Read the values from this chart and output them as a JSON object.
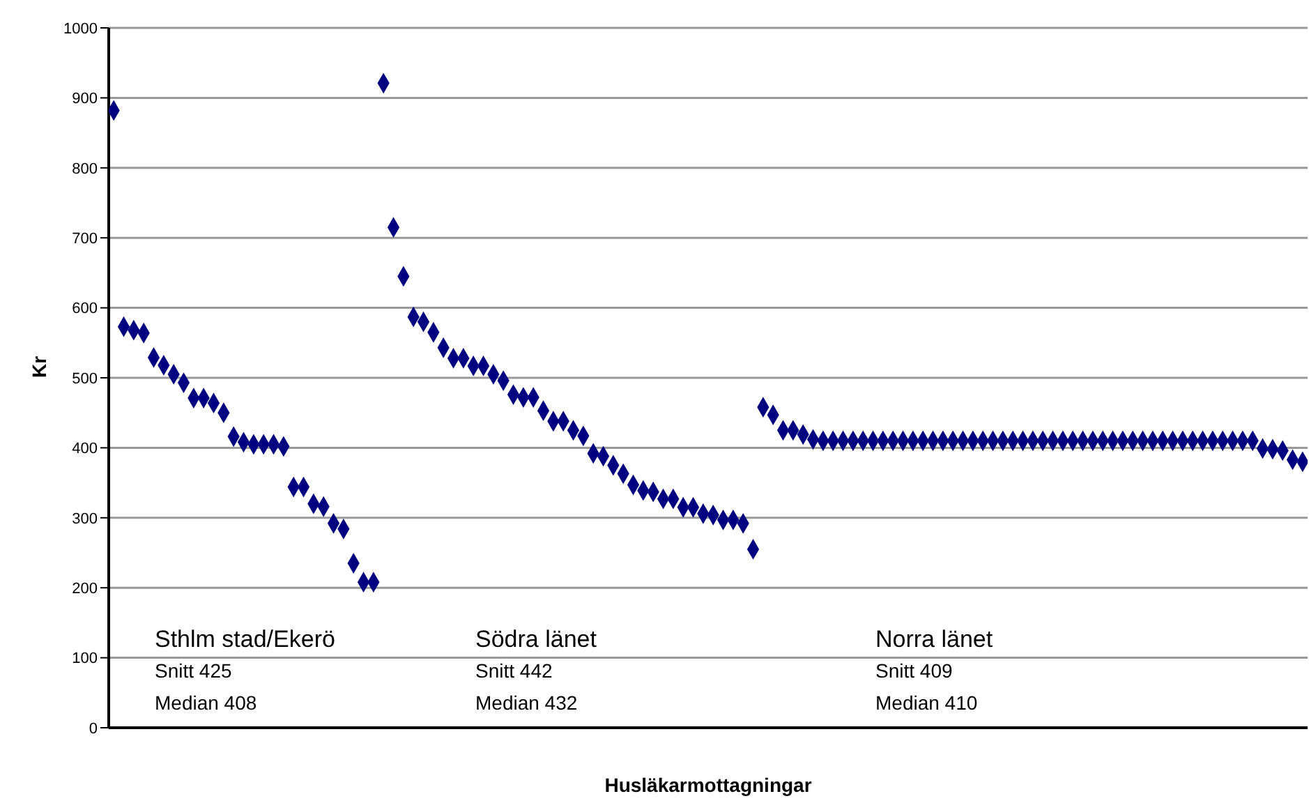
{
  "chart_data": {
    "type": "scatter",
    "xlabel": "Husläkarmottagningar",
    "ylabel": "Kr",
    "categories": [
      null,
      null,
      null,
      null,
      null,
      null,
      null,
      null,
      null,
      null,
      null,
      null,
      null,
      null,
      null,
      null,
      null,
      null,
      null,
      null,
      null,
      null,
      null,
      null,
      null,
      null,
      null,
      null,
      null,
      null,
      null,
      null,
      null,
      null,
      null,
      null,
      null,
      null,
      null,
      null,
      null,
      null,
      null,
      null,
      null,
      null,
      null,
      null,
      null,
      null,
      null,
      null,
      null,
      null,
      null,
      null,
      null,
      null,
      null,
      null,
      null,
      null,
      null,
      null,
      null,
      null,
      null,
      null,
      null,
      null,
      null,
      null,
      null,
      null,
      null,
      null,
      null,
      null,
      null,
      null,
      null,
      null,
      null,
      null,
      null,
      null,
      null,
      null,
      null,
      null,
      null,
      null,
      null,
      null,
      null,
      null,
      null,
      null,
      null,
      null,
      null,
      null,
      null,
      null,
      null,
      null,
      null,
      null,
      null,
      null,
      null,
      null,
      null,
      null,
      null,
      null,
      null,
      null,
      null,
      null
    ],
    "series": [
      {
        "color": "#000080",
        "values": [
          882,
          573,
          568,
          564,
          529,
          518,
          505,
          493,
          471,
          471,
          464,
          450,
          416,
          408,
          405,
          405,
          405,
          402,
          344,
          344,
          320,
          316,
          292,
          284,
          235,
          208,
          208,
          921,
          715,
          645,
          587,
          580,
          565,
          543,
          528,
          528,
          517,
          517,
          505,
          496,
          476,
          472,
          472,
          453,
          438,
          438,
          425,
          417,
          392,
          388,
          375,
          363,
          347,
          339,
          337,
          327,
          327,
          315,
          315,
          306,
          304,
          297,
          297,
          292,
          255,
          458,
          447,
          425,
          425,
          419,
          412,
          410,
          410,
          410,
          410,
          410,
          410,
          410,
          410,
          410,
          410,
          410,
          410,
          410,
          410,
          410,
          410,
          410,
          410,
          410,
          410,
          410,
          410,
          410,
          410,
          410,
          410,
          410,
          410,
          410,
          410,
          410,
          410,
          410,
          410,
          410,
          410,
          410,
          410,
          410,
          410,
          410,
          410,
          410,
          410,
          399,
          398,
          396,
          383,
          380
        ]
      }
    ],
    "ylim": [
      0,
      1000
    ],
    "yticks": [
      0,
      100,
      200,
      300,
      400,
      500,
      600,
      700,
      800,
      900,
      1000
    ],
    "grid": "y",
    "marker": "diamond",
    "annotations": [
      "Sthlm stad/Ekerö",
      "Snitt 425",
      "Median 408",
      "Södra länet",
      "Snitt 442",
      "Median 432",
      "Norra länet",
      "Snitt 409",
      "Median 410"
    ]
  }
}
